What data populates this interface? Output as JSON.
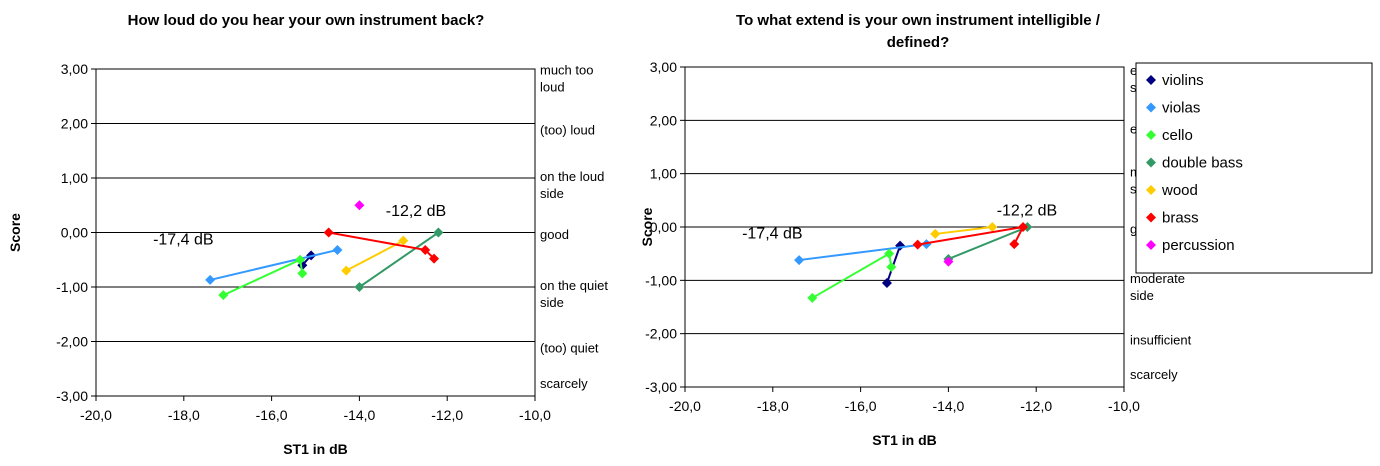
{
  "legend": {
    "entries": [
      {
        "name": "violins",
        "color": "#000080"
      },
      {
        "name": "violas",
        "color": "#3399ff"
      },
      {
        "name": "cello",
        "color": "#33ff33"
      },
      {
        "name": "double bass",
        "color": "#339966"
      },
      {
        "name": "wood",
        "color": "#ffcc00"
      },
      {
        "name": "brass",
        "color": "#ff0000"
      },
      {
        "name": "percussion",
        "color": "#ff00ff"
      }
    ]
  },
  "chart_data": [
    {
      "type": "scatter",
      "title_lines": [
        "How loud do you hear your own instrument back?"
      ],
      "xlabel": "ST1 in dB",
      "ylabel": "Score",
      "xlim": [
        -20,
        -10
      ],
      "ylim": [
        -3,
        3
      ],
      "xticks": [
        "-20,0",
        "-18,0",
        "-16,0",
        "-14,0",
        "-12,0",
        "-10,0"
      ],
      "yticks": [
        "3,00",
        "2,00",
        "1,00",
        "0,00",
        "-1,00",
        "-2,00",
        "-3,00"
      ],
      "grid": "horizontal",
      "right_labels": [
        {
          "y": 2.75,
          "lines": [
            "much too",
            "loud"
          ]
        },
        {
          "y": 1.8,
          "lines": [
            "(too) loud"
          ]
        },
        {
          "y": 0.8,
          "lines": [
            "on the loud",
            "side"
          ]
        },
        {
          "y": -0.12,
          "lines": [
            "good"
          ]
        },
        {
          "y": -1.2,
          "lines": [
            "on the quiet",
            "side"
          ]
        },
        {
          "y": -2.2,
          "lines": [
            "(too) quiet"
          ]
        },
        {
          "y": -2.85,
          "lines": [
            "scarcely"
          ]
        }
      ],
      "annotations": [
        {
          "text": "-17,4 dB",
          "x": -18.7,
          "y": -0.22
        },
        {
          "text": "-12,2 dB",
          "x": -13.4,
          "y": 0.3
        }
      ],
      "series": [
        {
          "name": "violins",
          "color": "#000080",
          "points": [
            [
              -15.3,
              -0.6
            ],
            [
              -15.1,
              -0.42
            ]
          ]
        },
        {
          "name": "violas",
          "color": "#3399ff",
          "points": [
            [
              -17.4,
              -0.87
            ],
            [
              -14.5,
              -0.32
            ]
          ]
        },
        {
          "name": "cello",
          "color": "#33ff33",
          "points": [
            [
              -17.1,
              -1.15
            ],
            [
              -15.35,
              -0.5
            ],
            [
              -15.3,
              -0.75
            ]
          ]
        },
        {
          "name": "double bass",
          "color": "#339966",
          "points": [
            [
              -14.0,
              -1.0
            ],
            [
              -12.2,
              0.0
            ]
          ]
        },
        {
          "name": "wood",
          "color": "#ffcc00",
          "points": [
            [
              -14.3,
              -0.7
            ],
            [
              -13.0,
              -0.15
            ]
          ]
        },
        {
          "name": "brass",
          "color": "#ff0000",
          "points": [
            [
              -14.7,
              0.0
            ],
            [
              -12.5,
              -0.32
            ],
            [
              -12.3,
              -0.48
            ]
          ]
        },
        {
          "name": "percussion",
          "color": "#ff00ff",
          "points": [
            [
              -14.0,
              0.5
            ]
          ]
        }
      ]
    },
    {
      "type": "scatter",
      "title_lines": [
        "To what extend is your own instrument intelligible /",
        "defined?"
      ],
      "xlabel": "ST1 in dB",
      "ylabel": "Score",
      "xlim": [
        -20,
        -10
      ],
      "ylim": [
        -3,
        3
      ],
      "xticks": [
        "-20,0",
        "-18,0",
        "-16,0",
        "-14,0",
        "-12,0",
        "-10,0"
      ],
      "yticks": [
        "3,00",
        "2,00",
        "1,00",
        "0,00",
        "-1,00",
        "-2,00",
        "-3,00"
      ],
      "grid": "horizontal",
      "right_labels": [
        {
          "y": 2.7,
          "lines": [
            "entirely",
            "seperate"
          ]
        },
        {
          "y": 1.75,
          "lines": [
            "excessive"
          ]
        },
        {
          "y": 0.8,
          "lines": [
            "more than",
            "sufficient"
          ]
        },
        {
          "y": -0.12,
          "lines": [
            "good"
          ]
        },
        {
          "y": -1.2,
          "lines": [
            "moderate",
            "side"
          ]
        },
        {
          "y": -2.2,
          "lines": [
            "insufficient"
          ]
        },
        {
          "y": -2.85,
          "lines": [
            "scarcely"
          ]
        }
      ],
      "annotations": [
        {
          "text": "-17,4 dB",
          "x": -18.7,
          "y": -0.22
        },
        {
          "text": "-12,2 dB",
          "x": -12.9,
          "y": 0.22
        }
      ],
      "series": [
        {
          "name": "violins",
          "color": "#000080",
          "points": [
            [
              -15.4,
              -1.05
            ],
            [
              -15.1,
              -0.35
            ]
          ]
        },
        {
          "name": "violas",
          "color": "#3399ff",
          "points": [
            [
              -17.4,
              -0.62
            ],
            [
              -14.5,
              -0.32
            ]
          ]
        },
        {
          "name": "cello",
          "color": "#33ff33",
          "points": [
            [
              -17.1,
              -1.33
            ],
            [
              -15.35,
              -0.5
            ],
            [
              -15.3,
              -0.75
            ]
          ]
        },
        {
          "name": "double bass",
          "color": "#339966",
          "points": [
            [
              -14.0,
              -0.6
            ],
            [
              -12.2,
              0.0
            ]
          ]
        },
        {
          "name": "wood",
          "color": "#ffcc00",
          "points": [
            [
              -14.3,
              -0.13
            ],
            [
              -13.0,
              0.0
            ]
          ]
        },
        {
          "name": "brass",
          "color": "#ff0000",
          "points": [
            [
              -14.7,
              -0.33
            ],
            [
              -12.3,
              0.0
            ],
            [
              -12.5,
              -0.32
            ]
          ]
        },
        {
          "name": "percussion",
          "color": "#ff00ff",
          "points": [
            [
              -14.0,
              -0.65
            ]
          ]
        }
      ]
    }
  ]
}
